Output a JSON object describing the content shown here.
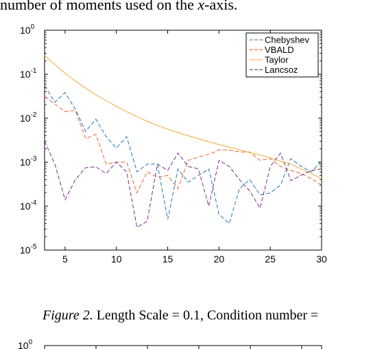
{
  "page": {
    "top_text_prefix": "number of moments used on the ",
    "top_text_var": "x",
    "top_text_suffix": "-axis.",
    "caption_fig": "Figure 2.",
    "caption_text": " Length Scale = 0.1, Condition number =",
    "next_chart_tick": "10^0"
  },
  "chart_data": {
    "type": "line",
    "yscale": "log",
    "xlim": [
      3,
      30
    ],
    "ylim": [
      1e-05,
      1
    ],
    "x_ticks": [
      5,
      10,
      15,
      20,
      25,
      30
    ],
    "y_ticks": [
      {
        "value": 1,
        "base": "10",
        "exp": "0"
      },
      {
        "value": 0.1,
        "base": "10",
        "exp": "-1"
      },
      {
        "value": 0.01,
        "base": "10",
        "exp": "-2"
      },
      {
        "value": 0.001,
        "base": "10",
        "exp": "-3"
      },
      {
        "value": 0.0001,
        "base": "10",
        "exp": "-4"
      },
      {
        "value": 1e-05,
        "base": "10",
        "exp": "-5"
      }
    ],
    "legend_position": "top-right",
    "grid": false,
    "x": [
      3,
      4,
      5,
      6,
      7,
      8,
      9,
      10,
      11,
      12,
      13,
      14,
      15,
      16,
      17,
      18,
      19,
      20,
      21,
      22,
      23,
      24,
      25,
      26,
      27,
      28,
      29,
      30
    ],
    "series": [
      {
        "name": "Chebyshev",
        "color": "#1f77b4",
        "dash": "6,3",
        "values": [
          0.055,
          0.023,
          0.038,
          0.016,
          0.005,
          0.0095,
          0.0038,
          0.0021,
          0.0038,
          0.0006,
          0.0009,
          0.0009,
          5e-05,
          0.0007,
          0.00035,
          0.0005,
          0.0007,
          6.5e-05,
          4e-05,
          0.00025,
          0.0004,
          0.00018,
          0.0002,
          0.0003,
          0.0012,
          0.0008,
          0.0006,
          0.00105
        ]
      },
      {
        "name": "VBALD",
        "color": "#e8632b",
        "dash": "6,3",
        "values": [
          0.031,
          0.021,
          0.014,
          0.015,
          0.0034,
          0.0043,
          0.0009,
          0.001,
          0.001,
          0.0002,
          0.0006,
          0.00045,
          0.0005,
          0.00025,
          0.0011,
          0.0013,
          0.0015,
          0.0019,
          0.0019,
          0.0017,
          0.0017,
          0.0011,
          0.0012,
          0.0008,
          0.00065,
          0.00055,
          0.00042,
          0.0003
        ]
      },
      {
        "name": "Taylor",
        "color": "#f0a830",
        "dash": "",
        "values": [
          0.27,
          0.165,
          0.105,
          0.07,
          0.048,
          0.034,
          0.025,
          0.0185,
          0.014,
          0.0108,
          0.0085,
          0.0068,
          0.0056,
          0.0047,
          0.004,
          0.0034,
          0.0029,
          0.0025,
          0.0022,
          0.0019,
          0.00165,
          0.00145,
          0.00125,
          0.00105,
          0.0009,
          0.0007,
          0.00055,
          0.00042
        ]
      },
      {
        "name": "Lancsoz",
        "color": "#7a2a8c",
        "dash": "6,3",
        "values": [
          0.003,
          0.0009,
          0.00014,
          0.0004,
          0.00075,
          0.00078,
          0.00055,
          0.001,
          0.0006,
          3.3e-05,
          4.5e-05,
          0.0009,
          0.00065,
          0.0016,
          0.0008,
          0.0007,
          0.0001,
          0.0011,
          0.0008,
          0.0004,
          0.00022,
          9e-05,
          0.0008,
          0.0016,
          0.00038,
          0.0005,
          0.00065,
          0.0007
        ]
      }
    ]
  }
}
